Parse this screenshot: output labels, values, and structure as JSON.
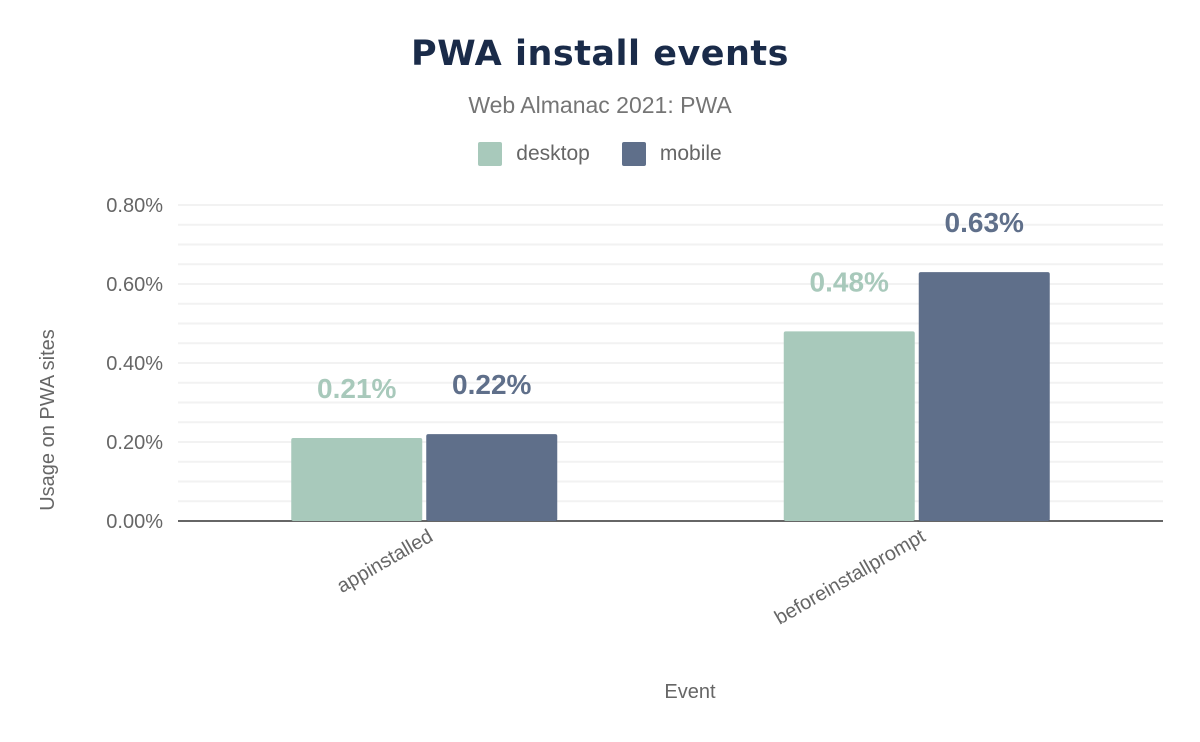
{
  "chart_data": {
    "type": "bar",
    "title": "PWA install events",
    "subtitle": "Web Almanac 2021: PWA",
    "xlabel": "Event",
    "ylabel": "Usage on PWA sites",
    "categories": [
      "appinstalled",
      "beforeinstallprompt"
    ],
    "series": [
      {
        "name": "desktop",
        "values": [
          0.21,
          0.48
        ],
        "labels": [
          "0.21%",
          "0.48%"
        ],
        "color": "#a8c9bb"
      },
      {
        "name": "mobile",
        "values": [
          0.22,
          0.63
        ],
        "labels": [
          "0.22%",
          "0.63%"
        ],
        "color": "#5f6f8a"
      }
    ],
    "ylim": [
      0,
      0.8
    ],
    "yticks": [
      "0.00%",
      "0.20%",
      "0.40%",
      "0.60%",
      "0.80%"
    ],
    "grid": true,
    "legend_position": "top-center"
  }
}
